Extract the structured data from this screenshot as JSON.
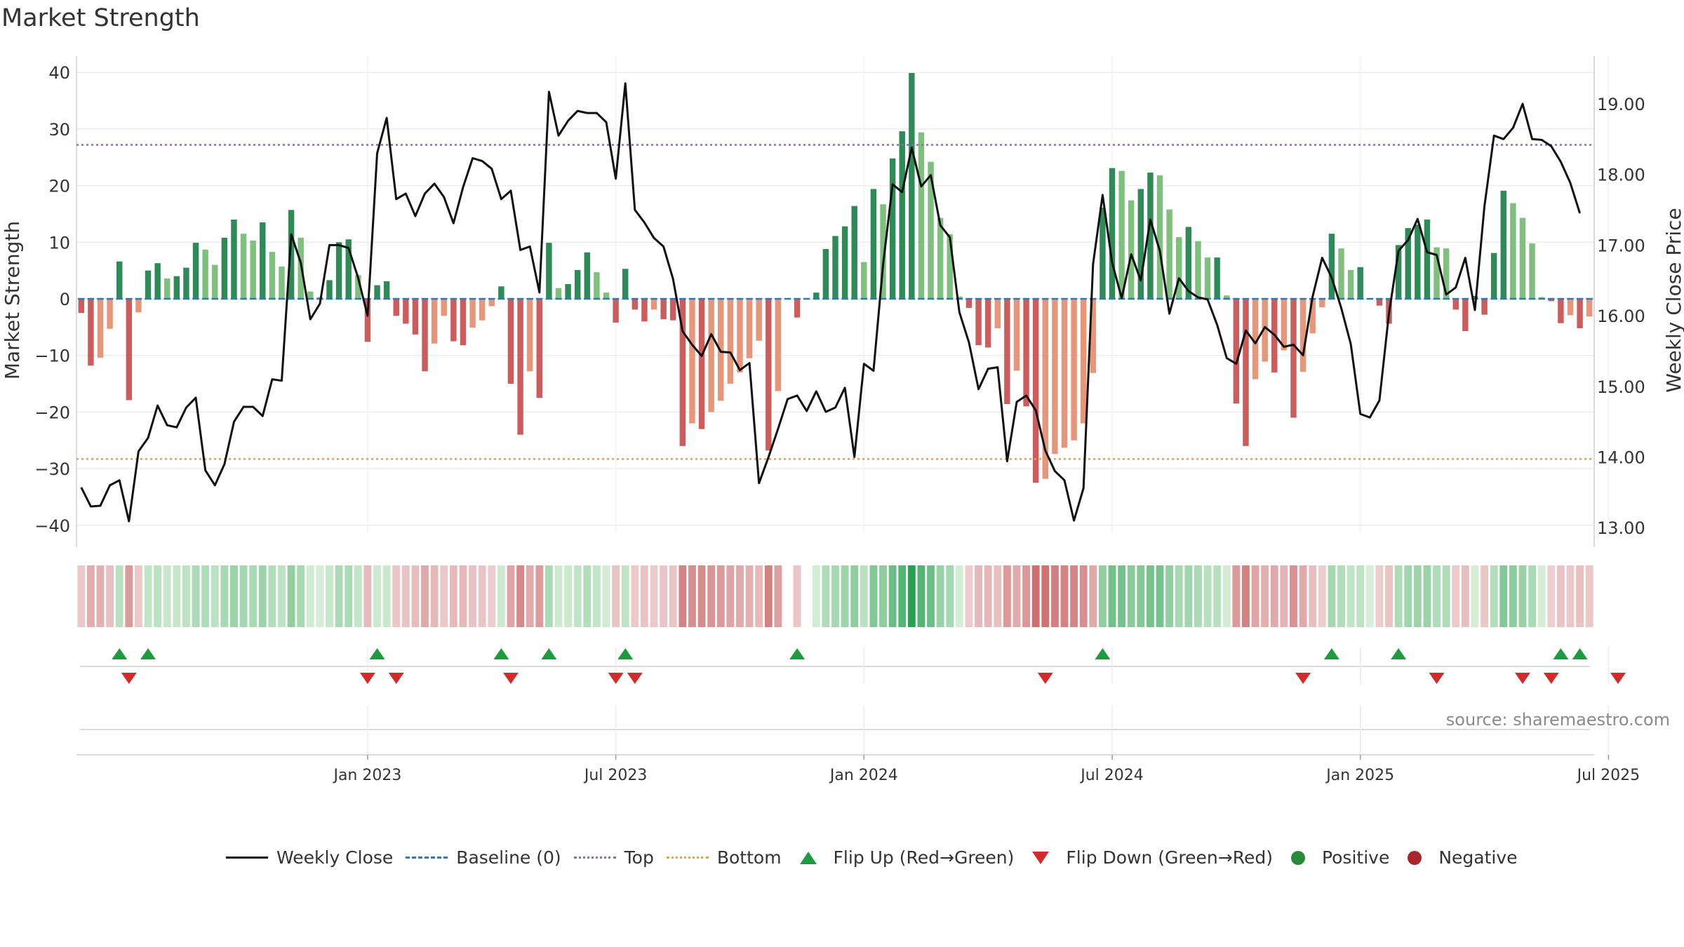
{
  "chart_title": "Market Strength",
  "source_text": "source: sharemaestro.com",
  "chart_data": {
    "type": "bar",
    "title": "Market Strength",
    "ylabel_left": "Market Strength",
    "ylabel_right": "Weekly Close Price",
    "ylim_left": [
      -45,
      40
    ],
    "ylim_right": [
      12.8,
      19.6
    ],
    "left_ticks": [
      40,
      30,
      20,
      10,
      0,
      -10,
      -20,
      -30,
      -40
    ],
    "left_tick_labels": [
      "40",
      "30",
      "20",
      "10",
      "0",
      "−10",
      "−20",
      "−30",
      "−40"
    ],
    "right_ticks": [
      19,
      18,
      17,
      16,
      15,
      14,
      13
    ],
    "right_tick_labels": [
      "19.00",
      "18.00",
      "17.00",
      "16.00",
      "15.00",
      "14.00",
      "13.00"
    ],
    "x_ticks": [
      "Jan 2023",
      "Jul 2023",
      "Jan 2024",
      "Jul 2024",
      "Jan 2025",
      "Jul 2025"
    ],
    "x_tick_week_index": [
      30,
      56,
      82,
      108,
      134,
      160
    ],
    "baseline": 0,
    "top_threshold": 27.2,
    "bottom_threshold": -28.3,
    "grid": true,
    "legend_placement": "bottom",
    "strength": [
      -2.5,
      -11.8,
      -10.4,
      -5.3,
      6.6,
      -17.9,
      -2.4,
      5.0,
      6.3,
      3.6,
      4.0,
      5.5,
      9.9,
      8.7,
      6.0,
      10.8,
      14.0,
      11.5,
      10.3,
      13.5,
      8.3,
      5.7,
      15.7,
      10.8,
      1.3,
      0.3,
      3.3,
      10.0,
      10.5,
      4.2,
      -7.6,
      2.4,
      3.1,
      -3.0,
      -4.4,
      -6.3,
      -12.8,
      -7.9,
      -3.0,
      -7.5,
      -8.2,
      -5.1,
      -3.8,
      -1.3,
      2.2,
      -15.0,
      -24.0,
      -12.8,
      -17.5,
      9.9,
      1.9,
      2.6,
      5.1,
      8.2,
      4.7,
      1.1,
      -4.2,
      5.3,
      -1.9,
      -4.0,
      -1.9,
      -3.6,
      -3.8,
      -26.0,
      -22.0,
      -23.0,
      -20.0,
      -18.0,
      -15.0,
      -13.0,
      -10.5,
      -7.4,
      -26.8,
      -16.3,
      null,
      -3.3,
      null,
      1.1,
      8.8,
      11.1,
      12.8,
      16.4,
      6.5,
      19.4,
      16.7,
      24.8,
      29.6,
      39.9,
      29.4,
      24.2,
      14.3,
      11.4,
      0.4,
      -1.6,
      -8.2,
      -8.6,
      -5.2,
      -18.6,
      -12.7,
      -19.0,
      -32.5,
      -31.8,
      -27.4,
      -26.3,
      -25.0,
      -22.0,
      -13.1,
      16.1,
      23.1,
      22.6,
      17.4,
      19.4,
      22.3,
      21.8,
      15.8,
      10.9,
      12.7,
      10.2,
      7.3,
      7.3,
      0.6,
      -18.5,
      -26.0,
      -14.2,
      -11.1,
      -13.0,
      -9.1,
      -21.0,
      -12.9,
      -6.1,
      -1.5,
      11.5,
      8.9,
      5.1,
      5.6,
      0.0,
      -1.2,
      -4.4,
      9.5,
      12.5,
      13.1,
      14.0,
      9.1,
      8.9,
      -1.9,
      -5.7,
      0.5,
      -2.8,
      8.1,
      19.1,
      16.9,
      14.3,
      9.8,
      0.3,
      -0.4,
      -4.3,
      -2.9,
      -5.2,
      -3.1
    ],
    "close": [
      13.57,
      13.3,
      13.31,
      13.6,
      13.67,
      13.09,
      14.08,
      14.27,
      14.73,
      14.45,
      14.42,
      14.7,
      14.84,
      13.81,
      13.6,
      13.9,
      14.5,
      14.71,
      14.71,
      14.58,
      15.1,
      15.08,
      17.15,
      16.75,
      15.95,
      16.17,
      17.0,
      17.0,
      16.96,
      16.54,
      16.0,
      18.3,
      18.8,
      17.65,
      17.73,
      17.41,
      17.73,
      17.87,
      17.68,
      17.31,
      17.82,
      18.23,
      18.19,
      18.08,
      17.65,
      17.77,
      16.93,
      16.98,
      16.33,
      19.17,
      18.55,
      18.76,
      18.9,
      18.87,
      18.87,
      18.74,
      17.94,
      19.29,
      17.5,
      17.32,
      17.1,
      16.98,
      16.52,
      15.78,
      15.59,
      15.43,
      15.74,
      15.49,
      15.48,
      15.23,
      15.33,
      13.63,
      14.0,
      14.4,
      14.82,
      14.87,
      14.65,
      14.93,
      14.64,
      14.7,
      14.98,
      14.0,
      15.32,
      15.22,
      16.72,
      17.86,
      17.75,
      18.38,
      17.83,
      17.99,
      17.28,
      17.11,
      16.05,
      15.62,
      14.96,
      15.25,
      15.27,
      13.94,
      14.78,
      14.87,
      14.66,
      14.09,
      13.8,
      13.67,
      13.1,
      13.56,
      16.73,
      17.71,
      16.75,
      16.25,
      16.87,
      16.5,
      17.36,
      16.92,
      16.03,
      16.53,
      16.35,
      16.26,
      16.23,
      15.87,
      15.4,
      15.32,
      15.79,
      15.61,
      15.84,
      15.73,
      15.56,
      15.59,
      15.44,
      16.27,
      16.82,
      16.54,
      16.11,
      15.6,
      14.61,
      14.56,
      14.8,
      16.03,
      16.92,
      17.07,
      17.37,
      16.9,
      16.86,
      16.3,
      16.4,
      16.82,
      16.08,
      17.55,
      18.55,
      18.5,
      18.66,
      19.0,
      18.5,
      18.49,
      18.4,
      18.18,
      17.88,
      17.45
    ],
    "bar_colors": {
      "strong_pos": "#2e8b57",
      "weak_pos": "#7fc07f",
      "strong_neg": "#cd5c5c",
      "weak_neg": "#e8967a"
    },
    "flip_up_weeks": [
      4,
      7,
      31,
      44,
      49,
      57,
      75,
      107,
      131,
      138,
      155,
      157
    ],
    "flip_down_weeks": [
      5,
      30,
      33,
      45,
      56,
      58,
      101,
      128,
      142,
      151,
      154,
      161
    ],
    "legend": [
      {
        "label": "Weekly Close",
        "symbol": "line"
      },
      {
        "label": "Baseline (0)",
        "symbol": "dash"
      },
      {
        "label": "Top",
        "symbol": "top"
      },
      {
        "label": "Bottom",
        "symbol": "bot"
      },
      {
        "label": "Flip Up (Red→Green)",
        "symbol": "up"
      },
      {
        "label": "Flip Down (Green→Red)",
        "symbol": "down"
      },
      {
        "label": "Positive",
        "symbol": "pos"
      },
      {
        "label": "Negative",
        "symbol": "neg"
      }
    ]
  }
}
